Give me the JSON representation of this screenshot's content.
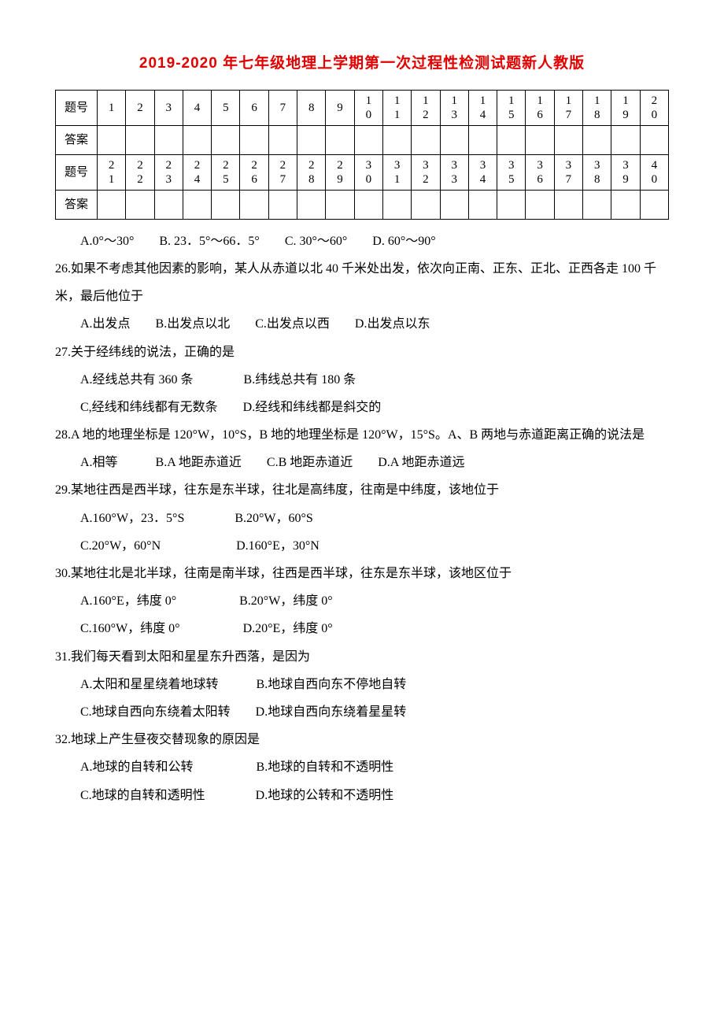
{
  "title": "2019-2020 年七年级地理上学期第一次过程性检测试题新人教版",
  "table": {
    "row_label_q": "题号",
    "row_label_a": "答案",
    "nums1a": [
      "1",
      "2",
      "3",
      "4",
      "5",
      "6",
      "7",
      "8",
      "9"
    ],
    "nums1b_top": [
      "1",
      "1",
      "1",
      "1",
      "1",
      "1",
      "1",
      "1",
      "1",
      "1",
      "2"
    ],
    "nums1b_bot": [
      "0",
      "1",
      "2",
      "3",
      "4",
      "5",
      "6",
      "7",
      "8",
      "9",
      "0"
    ],
    "nums2a_top": [
      "2",
      "2",
      "2",
      "2",
      "2",
      "2",
      "2",
      "2",
      "2",
      "3",
      "3",
      "3",
      "3",
      "3",
      "3",
      "3",
      "3",
      "3",
      "3",
      "4"
    ],
    "nums2a_bot": [
      "1",
      "2",
      "3",
      "4",
      "5",
      "6",
      "7",
      "8",
      "9",
      "0",
      "1",
      "2",
      "3",
      "4",
      "5",
      "6",
      "7",
      "8",
      "9",
      "0"
    ]
  },
  "q25_opts": "A.0°～30°　　B. 23．5°～66．5°　　C. 30°～60°　　D. 60°～90°",
  "q26": "26.如果不考虑其他因素的影响，某人从赤道以北 40 千米处出发，依次向正南、正东、正北、正西各走 100 千米，最后他位于",
  "q26_opts": "A.出发点　　B.出发点以北　　C.出发点以西　　D.出发点以东",
  "q27": "27.关于经纬线的说法，正确的是",
  "q27_a": "A.经线总共有 360 条　　　　B.纬线总共有 180 条",
  "q27_b": "C,经线和纬线都有无数条　　D.经线和纬线都是斜交的",
  "q28": "28.A 地的地理坐标是 120°W，10°S，B 地的地理坐标是 120°W，15°S。A、B 两地与赤道距离正确的说法是",
  "q28_opts": "A.相等　　　B.A 地距赤道近　　C.B 地距赤道近　　D.A 地距赤道远",
  "q29": "29.某地往西是西半球，往东是东半球，往北是高纬度，往南是中纬度，该地位于",
  "q29_a": "A.160°W，23．5°S　　　　B.20°W，60°S",
  "q29_b": "C.20°W，60°N　　　　　　D.160°E，30°N",
  "q30": "30.某地往北是北半球，往南是南半球，往西是西半球，往东是东半球，该地区位于",
  "q30_a": "A.160°E，纬度 0°　　　　　B.20°W，纬度 0°",
  "q30_b": "C.160°W，纬度 0°　　　　　D.20°E，纬度 0°",
  "q31": "31.我们每天看到太阳和星星东升西落，是因为",
  "q31_a": "A.太阳和星星绕着地球转　　　B.地球自西向东不停地自转",
  "q31_b": "C.地球自西向东绕着太阳转　　D.地球自西向东绕着星星转",
  "q32": "32.地球上产生昼夜交替现象的原因是",
  "q32_a": "A.地球的自转和公转　　　　　B.地球的自转和不透明性",
  "q32_b": "C.地球的自转和透明性　　　　D.地球的公转和不透明性"
}
